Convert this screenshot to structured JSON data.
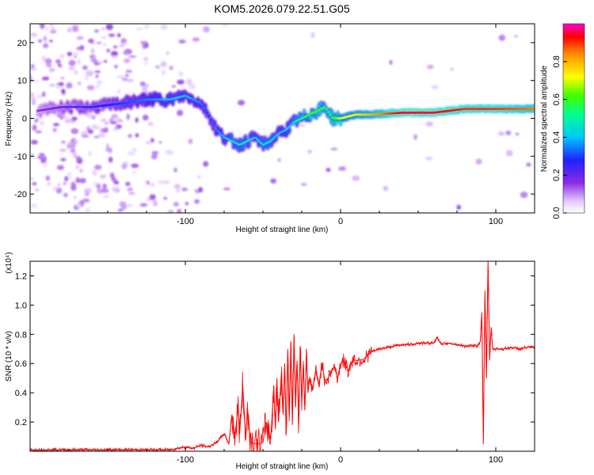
{
  "title": "KOM5.2026.079.22.51.G05",
  "chart_data": [
    {
      "type": "heatmap",
      "name": "spectrogram",
      "xlabel": "Height of straight line (km)",
      "ylabel": "Frequency (Hz)",
      "xlim": [
        -200,
        125
      ],
      "ylim": [
        -25,
        25
      ],
      "xticks": [
        -100,
        0,
        100
      ],
      "yticks": [
        -20,
        -10,
        0,
        10,
        20
      ],
      "colorbar": {
        "label": "Normalized spectral amplitude",
        "range": [
          0,
          1
        ],
        "ticks": [
          "0.0",
          "0.2",
          "0.4",
          "0.6",
          "0.8"
        ]
      },
      "ridge": {
        "x": [
          -195,
          -180,
          -160,
          -140,
          -125,
          -110,
          -100,
          -90,
          -85,
          -80,
          -75,
          -70,
          -65,
          -60,
          -55,
          -50,
          -45,
          -40,
          -35,
          -30,
          -25,
          -20,
          -15,
          -10,
          -5,
          0,
          10,
          20,
          40,
          60,
          80,
          100,
          125
        ],
        "freq": [
          2,
          3,
          3,
          4,
          5,
          5,
          6,
          4,
          1,
          -3,
          -5,
          -6,
          -7,
          -6,
          -5,
          -7,
          -6,
          -4,
          -3,
          -1,
          0,
          1,
          2,
          3,
          0,
          0,
          1,
          1,
          1.5,
          1.5,
          2.5,
          2.5,
          2.5
        ],
        "amplitude": [
          0.15,
          0.2,
          0.25,
          0.3,
          0.35,
          0.4,
          0.4,
          0.35,
          0.3,
          0.35,
          0.4,
          0.45,
          0.45,
          0.45,
          0.4,
          0.45,
          0.45,
          0.4,
          0.4,
          0.45,
          0.55,
          0.6,
          0.6,
          0.55,
          0.6,
          0.7,
          0.75,
          0.8,
          0.95,
          0.95,
          0.9,
          0.9,
          0.85
        ]
      }
    },
    {
      "type": "line",
      "name": "snr",
      "xlabel": "Height of straight line (km)",
      "ylabel": "SNR (10 * v/v)",
      "y_scale_label": "(x10⁴)",
      "xlim": [
        -200,
        125
      ],
      "ylim": [
        0,
        1.3
      ],
      "xticks": [
        -100,
        0,
        100
      ],
      "yticks": [
        0.2,
        0.4,
        0.6,
        0.8,
        1.0,
        1.2
      ],
      "color": "#ff0000",
      "series": [
        {
          "name": "SNR",
          "x": [
            -200,
            -190,
            -180,
            -170,
            -160,
            -150,
            -140,
            -130,
            -120,
            -110,
            -100,
            -95,
            -90,
            -85,
            -80,
            -75,
            -72,
            -70,
            -68,
            -66,
            -65,
            -63,
            -61,
            -60,
            -58,
            -55,
            -52,
            -50,
            -48,
            -45,
            -43,
            -42,
            -41,
            -40,
            -38,
            -37,
            -36,
            -35,
            -34,
            -33,
            -32,
            -31,
            -30,
            -29,
            -28,
            -27,
            -26,
            -25,
            -24,
            -23,
            -22,
            -21,
            -20,
            -18,
            -16,
            -14,
            -12,
            -10,
            -8,
            -6,
            -4,
            -2,
            0,
            2,
            5,
            8,
            10,
            15,
            20,
            25,
            30,
            35,
            40,
            45,
            50,
            55,
            60,
            62,
            65,
            70,
            75,
            80,
            85,
            88,
            90,
            91,
            92,
            93,
            94,
            95,
            96,
            97,
            98,
            100,
            105,
            110,
            115,
            120,
            125
          ],
          "y": [
            0.01,
            0.01,
            0.01,
            0.01,
            0.01,
            0.01,
            0.01,
            0.01,
            0.01,
            0.01,
            0.03,
            0.02,
            0.04,
            0.03,
            0.06,
            0.12,
            0.05,
            0.25,
            0.1,
            0.3,
            0.12,
            0.45,
            0.08,
            0.3,
            0.06,
            0.05,
            0.05,
            0.06,
            0.2,
            0.08,
            0.45,
            0.15,
            0.5,
            0.2,
            0.55,
            0.25,
            0.6,
            0.12,
            0.7,
            0.25,
            0.75,
            0.18,
            0.8,
            0.3,
            0.62,
            0.2,
            0.72,
            0.35,
            0.6,
            0.28,
            0.7,
            0.4,
            0.5,
            0.42,
            0.55,
            0.45,
            0.6,
            0.48,
            0.5,
            0.55,
            0.58,
            0.5,
            0.6,
            0.62,
            0.55,
            0.63,
            0.62,
            0.63,
            0.68,
            0.7,
            0.71,
            0.72,
            0.73,
            0.73,
            0.74,
            0.74,
            0.74,
            0.78,
            0.73,
            0.74,
            0.73,
            0.72,
            0.72,
            0.72,
            0.75,
            0.95,
            0.05,
            1.1,
            0.5,
            1.3,
            0.62,
            0.85,
            0.7,
            0.7,
            0.7,
            0.71,
            0.7,
            0.71,
            0.71
          ]
        }
      ]
    }
  ]
}
